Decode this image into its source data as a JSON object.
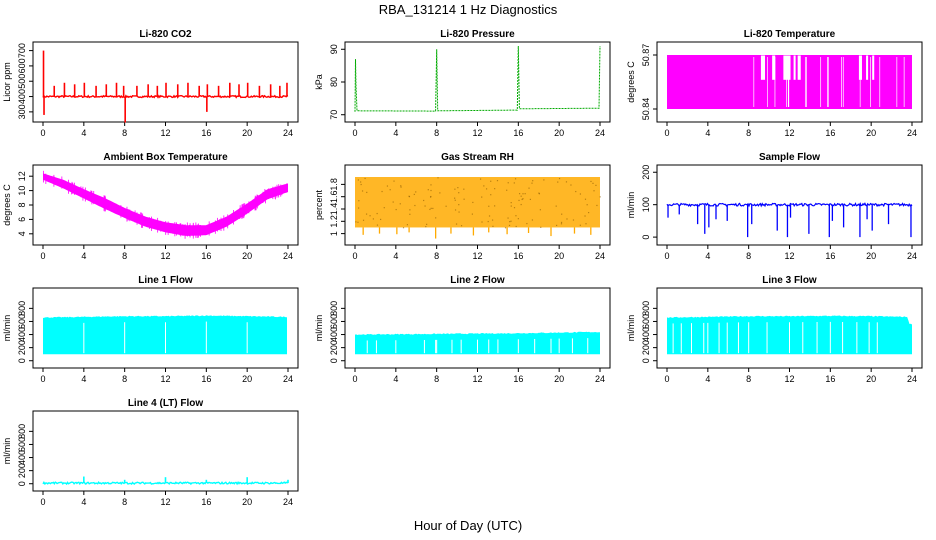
{
  "figure": {
    "title": "RBA_131214  1 Hz Diagnostics",
    "xlabel": "Hour of Day (UTC)"
  },
  "chart_data": [
    {
      "type": "line",
      "title": "Li-820 CO2",
      "ylabel": "Licor ppm",
      "color": "#ff0000",
      "xlim": [
        0,
        24
      ],
      "ylim": [
        260,
        730
      ],
      "xticks": [
        0,
        4,
        8,
        12,
        16,
        20,
        24
      ],
      "yticks": [
        300,
        400,
        500,
        600,
        700
      ],
      "series": [
        {
          "baseline": [
            [
              0,
              400
            ],
            [
              24,
              400
            ]
          ],
          "spikes": [
            [
              0.05,
              700
            ],
            [
              0.1,
              280
            ],
            [
              1.1,
              470
            ],
            [
              2.1,
              490
            ],
            [
              3.1,
              480
            ],
            [
              4.05,
              490
            ],
            [
              5.2,
              470
            ],
            [
              6.2,
              480
            ],
            [
              7.2,
              490
            ],
            [
              7.9,
              470
            ],
            [
              8.05,
              230
            ],
            [
              9.2,
              470
            ],
            [
              10.3,
              480
            ],
            [
              11.2,
              470
            ],
            [
              12.05,
              490
            ],
            [
              13.2,
              480
            ],
            [
              14.2,
              490
            ],
            [
              15.3,
              470
            ],
            [
              16.05,
              300
            ],
            [
              16.1,
              480
            ],
            [
              17.2,
              470
            ],
            [
              18.3,
              490
            ],
            [
              19.2,
              480
            ],
            [
              20.05,
              490
            ],
            [
              21.2,
              470
            ],
            [
              22.3,
              480
            ],
            [
              23.2,
              470
            ],
            [
              23.9,
              490
            ]
          ]
        }
      ]
    },
    {
      "type": "line",
      "title": "Li-820 Pressure",
      "ylabel": "kPa",
      "color": "#00aa00",
      "xlim": [
        0,
        24
      ],
      "ylim": [
        69,
        91
      ],
      "xticks": [
        0,
        4,
        8,
        12,
        16,
        20,
        24
      ],
      "yticks": [
        70,
        80,
        90
      ],
      "series": [
        {
          "points": [
            [
              0,
              70.9
            ],
            [
              0.05,
              87
            ],
            [
              0.1,
              79
            ],
            [
              0.2,
              71.2
            ],
            [
              7.9,
              71.1
            ],
            [
              8.0,
              90
            ],
            [
              8.1,
              71.2
            ],
            [
              15.9,
              71.4
            ],
            [
              16.0,
              91
            ],
            [
              16.1,
              71.8
            ],
            [
              23.9,
              72.0
            ],
            [
              24.0,
              91
            ]
          ]
        }
      ]
    },
    {
      "type": "area",
      "title": "Li-820 Temperature",
      "ylabel": "degrees C",
      "color": "#ff00ff",
      "xlim": [
        0,
        24
      ],
      "ylim": [
        50.835,
        50.875
      ],
      "xticks": [
        0,
        4,
        8,
        12,
        16,
        20,
        24
      ],
      "yticks": [
        50.84,
        50.87
      ],
      "series": [
        {
          "range": [
            50.84,
            50.87
          ],
          "gaps": [
            [
              9.2,
              9.6
            ],
            [
              10.3,
              10.6
            ],
            [
              11.4,
              12.1
            ],
            [
              12.4,
              12.6
            ],
            [
              12.8,
              13.1
            ],
            [
              18.8,
              19.1
            ],
            [
              19.5,
              19.7
            ],
            [
              20.1,
              20.3
            ]
          ]
        }
      ]
    },
    {
      "type": "area",
      "title": "Ambient Box Temperature",
      "ylabel": "degrees C",
      "color": "#ff00ff",
      "xlim": [
        0,
        24
      ],
      "ylim": [
        3,
        13
      ],
      "xticks": [
        0,
        4,
        8,
        12,
        16,
        20,
        24
      ],
      "yticks": [
        4,
        6,
        8,
        10,
        12
      ],
      "series": [
        {
          "upper": [
            [
              0,
              12.4
            ],
            [
              2,
              11.5
            ],
            [
              4,
              10.2
            ],
            [
              6,
              9.0
            ],
            [
              8,
              7.6
            ],
            [
              10,
              6.4
            ],
            [
              12,
              5.6
            ],
            [
              14,
              5.2
            ],
            [
              16,
              5.2
            ],
            [
              18,
              6.4
            ],
            [
              20,
              8.2
            ],
            [
              22,
              10.2
            ],
            [
              24,
              11.0
            ]
          ],
          "lower": [
            [
              0,
              11.5
            ],
            [
              2,
              10.3
            ],
            [
              4,
              8.9
            ],
            [
              6,
              7.5
            ],
            [
              8,
              6.2
            ],
            [
              10,
              5.0
            ],
            [
              12,
              4.2
            ],
            [
              14,
              3.7
            ],
            [
              16,
              3.8
            ],
            [
              18,
              5.0
            ],
            [
              20,
              6.8
            ],
            [
              22,
              8.8
            ],
            [
              24,
              9.8
            ]
          ]
        }
      ]
    },
    {
      "type": "area",
      "title": "Gas Stream RH",
      "ylabel": "percent",
      "color": "#ffaa00",
      "xlim": [
        0,
        24
      ],
      "ylim": [
        0.88,
        2.05
      ],
      "xticks": [
        0,
        4,
        8,
        12,
        16,
        20,
        24
      ],
      "yticks": [
        1.0,
        1.2,
        1.4,
        1.6,
        1.8
      ],
      "series": [
        {
          "range": [
            1.1,
            1.92
          ],
          "dips": [
            [
              0.8,
              0.98
            ],
            [
              2.4,
              1.0
            ],
            [
              4.1,
              0.99
            ],
            [
              5.3,
              1.02
            ],
            [
              7.9,
              0.92
            ],
            [
              9.4,
              1.0
            ],
            [
              11.6,
              0.97
            ],
            [
              13.1,
              1.02
            ],
            [
              14.9,
              0.99
            ],
            [
              17.0,
              1.01
            ],
            [
              19.2,
              0.96
            ],
            [
              21.5,
              1.0
            ],
            [
              23.1,
              0.98
            ]
          ]
        }
      ]
    },
    {
      "type": "line",
      "title": "Sample Flow",
      "ylabel": "ml/min",
      "color": "#0000ff",
      "xlim": [
        0,
        24
      ],
      "ylim": [
        -12,
        210
      ],
      "xticks": [
        0,
        4,
        8,
        12,
        16,
        20,
        24
      ],
      "yticks": [
        0,
        100,
        200
      ],
      "series": [
        {
          "baseline": [
            [
              0,
              100
            ],
            [
              24,
              100
            ]
          ],
          "dips": [
            [
              0.1,
              60
            ],
            [
              1.2,
              70
            ],
            [
              3.0,
              40
            ],
            [
              3.7,
              10
            ],
            [
              4.1,
              30
            ],
            [
              4.8,
              55
            ],
            [
              5.9,
              50
            ],
            [
              7.9,
              0
            ],
            [
              8.3,
              40
            ],
            [
              10.8,
              20
            ],
            [
              11.8,
              0
            ],
            [
              12.1,
              60
            ],
            [
              13.9,
              10
            ],
            [
              15.9,
              0
            ],
            [
              16.2,
              50
            ],
            [
              17.3,
              30
            ],
            [
              18.9,
              0
            ],
            [
              19.6,
              55
            ],
            [
              20.1,
              20
            ],
            [
              21.7,
              40
            ],
            [
              23.9,
              0
            ]
          ]
        }
      ]
    },
    {
      "type": "area",
      "title": "Line 1 Flow",
      "ylabel": "ml/min",
      "color": "#00ffff",
      "xlim": [
        0,
        24
      ],
      "ylim": [
        -50,
        1050
      ],
      "xticks": [
        0,
        4,
        8,
        12,
        16,
        20,
        24
      ],
      "yticks": [
        0,
        200,
        400,
        600,
        800
      ],
      "series": [
        {
          "upper": [
            [
              0,
              660
            ],
            [
              4,
              670
            ],
            [
              8,
              680
            ],
            [
              12,
              680
            ],
            [
              16,
              690
            ],
            [
              20,
              680
            ],
            [
              23.9,
              670
            ]
          ],
          "lower": 100,
          "gaps": [
            4.0,
            8.0,
            12.0,
            16.0,
            20.0
          ]
        }
      ]
    },
    {
      "type": "area",
      "title": "Line 2 Flow",
      "ylabel": "ml/min",
      "color": "#00ffff",
      "xlim": [
        0,
        24
      ],
      "ylim": [
        -50,
        1050
      ],
      "xticks": [
        0,
        4,
        8,
        12,
        16,
        20,
        24
      ],
      "yticks": [
        0,
        200,
        400,
        600,
        800
      ],
      "series": [
        {
          "upper": [
            [
              0,
              400
            ],
            [
              4,
              405
            ],
            [
              8,
              410
            ],
            [
              12,
              415
            ],
            [
              16,
              420
            ],
            [
              20,
              430
            ],
            [
              24,
              440
            ]
          ],
          "lower": 100,
          "gaps": [
            1.2,
            2.1,
            4.0,
            6.8,
            7.9,
            8.0,
            9.5,
            10.4,
            12.0,
            13.1,
            14.0,
            16.0,
            17.6,
            19.2,
            20.0,
            21.3,
            22.8
          ]
        }
      ]
    },
    {
      "type": "area",
      "title": "Line 3 Flow",
      "ylabel": "ml/min",
      "color": "#00ffff",
      "xlim": [
        0,
        24
      ],
      "ylim": [
        -50,
        1050
      ],
      "xticks": [
        0,
        4,
        8,
        12,
        16,
        20,
        24
      ],
      "yticks": [
        0,
        200,
        400,
        600,
        800
      ],
      "series": [
        {
          "upper": [
            [
              0,
              660
            ],
            [
              4,
              670
            ],
            [
              8,
              680
            ],
            [
              12,
              680
            ],
            [
              16,
              685
            ],
            [
              20,
              680
            ],
            [
              23.6,
              670
            ],
            [
              23.7,
              560
            ],
            [
              24,
              560
            ]
          ],
          "lower": 100,
          "gaps": [
            0.6,
            1.4,
            2.4,
            3.6,
            4.0,
            5.1,
            5.9,
            7.0,
            8.0,
            9.8,
            12.0,
            13.3,
            14.7,
            16.0,
            17.2,
            18.6,
            19.8,
            20.6
          ]
        }
      ]
    },
    {
      "type": "line",
      "title": "Line 4 (LT) Flow",
      "ylabel": "ml/min",
      "color": "#00ffff",
      "xlim": [
        0,
        24
      ],
      "ylim": [
        -50,
        1050
      ],
      "xticks": [
        0,
        4,
        8,
        12,
        16,
        20,
        24
      ],
      "yticks": [
        0,
        200,
        400,
        600,
        800
      ],
      "series": [
        {
          "baseline": [
            [
              0,
              10
            ],
            [
              24,
              10
            ]
          ],
          "spikes": [
            [
              4.0,
              110
            ],
            [
              8.0,
              60
            ],
            [
              12.0,
              100
            ],
            [
              16.0,
              60
            ],
            [
              20.0,
              100
            ],
            [
              24.0,
              60
            ]
          ]
        }
      ]
    }
  ]
}
